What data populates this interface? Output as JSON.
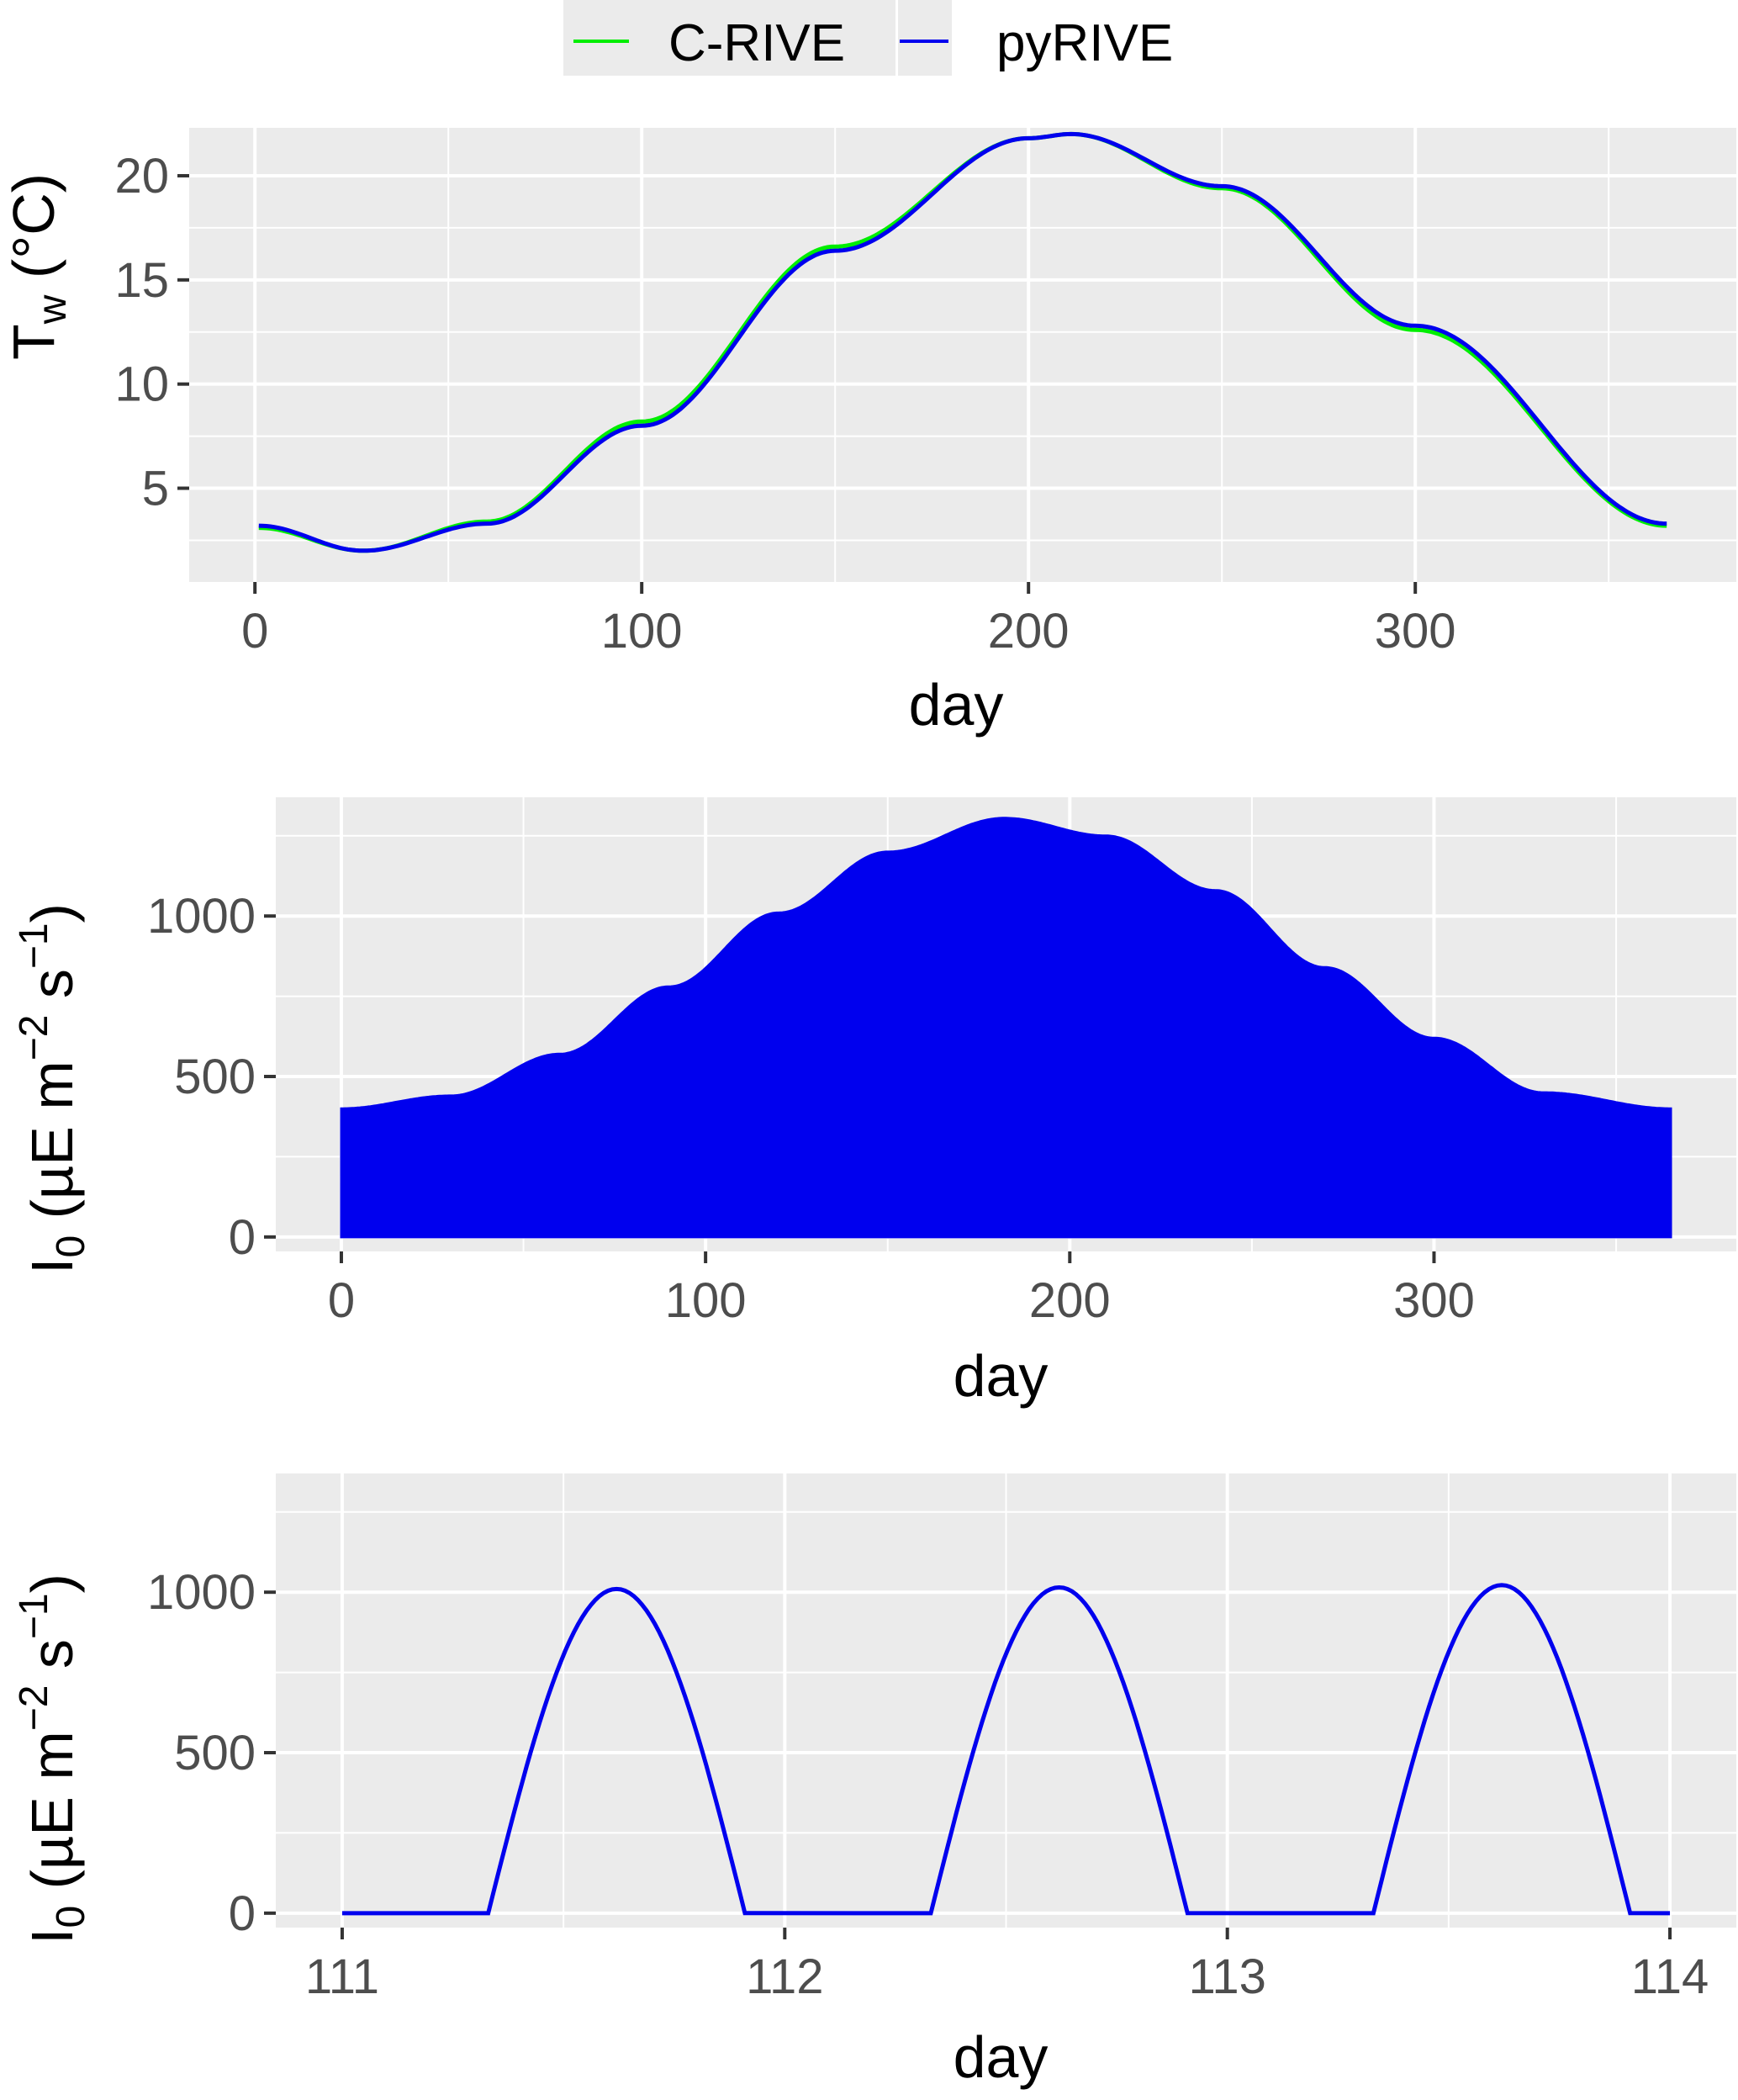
{
  "legend": {
    "items": [
      {
        "label": "C-RIVE",
        "color": "#00ee00"
      },
      {
        "label": "pyRIVE",
        "color": "#0000ee"
      }
    ]
  },
  "chart_data": [
    {
      "type": "line",
      "xlabel": "day",
      "ylabel": "T_w (°C)",
      "xlim": [
        -17,
        383
      ],
      "ylim": [
        0.5,
        22.3
      ],
      "x_ticks": [
        0,
        100,
        200,
        300
      ],
      "x_minor_ticks": [
        50,
        150,
        250,
        350
      ],
      "y_ticks": [
        5,
        10,
        15,
        20
      ],
      "y_minor_ticks": [
        2.5,
        7.5,
        12.5,
        17.5
      ],
      "grid": true,
      "legend_position": "top",
      "series": [
        {
          "name": "C-RIVE",
          "color": "#00ee00",
          "x": [
            1,
            28,
            60,
            100,
            150,
            200,
            211,
            250,
            300,
            365
          ],
          "y": [
            3.1,
            2.0,
            3.4,
            8.2,
            16.6,
            21.8,
            22.0,
            19.4,
            12.6,
            3.2
          ]
        },
        {
          "name": "pyRIVE",
          "color": "#0000ee",
          "x": [
            1,
            28,
            60,
            100,
            150,
            200,
            211,
            250,
            300,
            365
          ],
          "y": [
            3.2,
            2.0,
            3.3,
            8.0,
            16.4,
            21.8,
            22.0,
            19.5,
            12.8,
            3.3
          ]
        }
      ]
    },
    {
      "type": "area",
      "xlabel": "day",
      "ylabel": "I_0 (µE m^-2 s^-1)",
      "xlim": [
        -18,
        383
      ],
      "ylim": [
        -45,
        1370
      ],
      "x_ticks": [
        0,
        100,
        200,
        300
      ],
      "x_minor_ticks": [
        50,
        150,
        250,
        350
      ],
      "y_ticks": [
        0,
        500,
        1000
      ],
      "y_minor_ticks": [
        250,
        750,
        1250
      ],
      "grid": true,
      "series": [
        {
          "name": "pyRIVE",
          "color": "#0000ee",
          "description_of_fill": "daily max envelope; daily minimum 0",
          "x": [
            0,
            30,
            60,
            90,
            120,
            150,
            182,
            210,
            240,
            270,
            300,
            330,
            365
          ],
          "y": [
            400,
            440,
            570,
            780,
            1010,
            1200,
            1305,
            1250,
            1080,
            840,
            620,
            450,
            400
          ]
        }
      ]
    },
    {
      "type": "line",
      "xlabel": "day",
      "ylabel": "I_0 (µE m^-2 s^-1)",
      "xlim": [
        110.85,
        114.15
      ],
      "ylim": [
        -45,
        1370
      ],
      "x_ticks": [
        111,
        112,
        113,
        114
      ],
      "x_minor_ticks": [
        111.5,
        112.5,
        113.5
      ],
      "y_ticks": [
        0,
        500,
        1000
      ],
      "y_minor_ticks": [
        250,
        750,
        1250
      ],
      "grid": true,
      "series": [
        {
          "name": "pyRIVE",
          "color": "#0000ee",
          "x": [
            111.0,
            111.33,
            111.62,
            111.91,
            112.33,
            112.62,
            112.91,
            113.33,
            113.62,
            113.91,
            114.0
          ],
          "y": [
            0,
            0,
            1010,
            0,
            0,
            1015,
            0,
            0,
            1022,
            0,
            0
          ]
        }
      ]
    }
  ]
}
